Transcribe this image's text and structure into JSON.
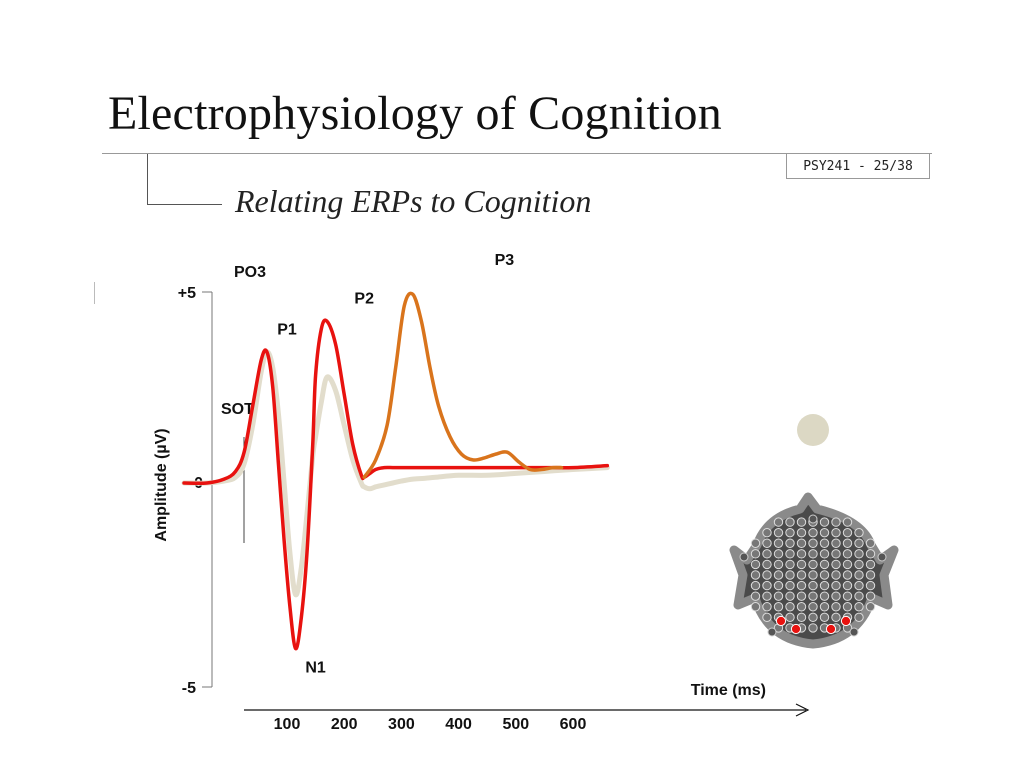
{
  "slide": {
    "title": "Electrophysiology of Cognition",
    "subtitle": "Relating ERPs to Cognition",
    "slide_number": "PSY241 - 25/38"
  },
  "colors": {
    "condition_red": "#e8120f",
    "condition_beige": "#e2ddcc",
    "condition_orange": "#d9741c",
    "head_fill": "#4a4a4a",
    "head_outline": "#8a8a8a",
    "electrode_highlight": "#e8120f",
    "marker_beige": "#dcd8c4"
  },
  "chart_data": {
    "type": "line",
    "ylabel": "Amplitude (µV)",
    "xlabel": "Time (ms)",
    "ylim": [
      -5,
      5
    ],
    "y_ticks": [
      {
        "value": 5,
        "label": "+5"
      },
      {
        "value": 0,
        "label": "0"
      },
      {
        "value": -5,
        "label": "-5"
      }
    ],
    "x_ticks": [
      100,
      200,
      300,
      400,
      500,
      600
    ],
    "electrode_label": "PO3",
    "onset_label": "SOT",
    "components": [
      {
        "label": "P1",
        "x": 100,
        "y": 3.5
      },
      {
        "label": "N1",
        "x": 150,
        "y": -4.3
      },
      {
        "label": "P2",
        "x": 235,
        "y": 4.3
      },
      {
        "label": "P3",
        "x": 480,
        "y": 5.3
      }
    ],
    "series": [
      {
        "color": "#e2ddcc",
        "x": [
          -80,
          -40,
          -10,
          10,
          25,
          40,
          55,
          65,
          75,
          85,
          95,
          105,
          115,
          125,
          135,
          145,
          150,
          160,
          170,
          185,
          200,
          215,
          230,
          235,
          245,
          255,
          270,
          285,
          300,
          320,
          340,
          360,
          400,
          450,
          500,
          550,
          600,
          660
        ],
        "y": [
          0.0,
          0.0,
          0.05,
          0.15,
          0.5,
          1.5,
          2.9,
          3.4,
          3.0,
          1.8,
          0.0,
          -1.8,
          -2.9,
          -2.2,
          -0.8,
          0.7,
          1.2,
          2.1,
          2.75,
          2.4,
          1.5,
          0.6,
          0.0,
          -0.1,
          -0.15,
          -0.1,
          -0.05,
          0.0,
          0.05,
          0.1,
          0.12,
          0.15,
          0.2,
          0.2,
          0.25,
          0.3,
          0.35,
          0.4
        ]
      },
      {
        "color": "#e8120f",
        "x": [
          -80,
          -40,
          -10,
          10,
          25,
          40,
          55,
          65,
          75,
          85,
          95,
          105,
          115,
          125,
          135,
          145,
          150,
          160,
          170,
          185,
          200,
          215,
          230,
          235,
          245,
          255,
          270,
          285,
          300,
          320,
          340,
          360,
          400,
          450,
          500,
          550,
          600,
          660
        ],
        "y": [
          0.0,
          0.0,
          0.1,
          0.3,
          0.8,
          2.0,
          3.2,
          3.4,
          2.5,
          0.5,
          -1.5,
          -3.2,
          -4.3,
          -3.5,
          -1.8,
          1.0,
          2.8,
          4.0,
          4.2,
          3.6,
          2.3,
          1.0,
          0.2,
          0.15,
          0.25,
          0.35,
          0.4,
          0.4,
          0.4,
          0.4,
          0.4,
          0.4,
          0.4,
          0.4,
          0.4,
          0.4,
          0.4,
          0.45
        ]
      },
      {
        "color": "#d9741c",
        "x": [
          235,
          255,
          275,
          290,
          305,
          320,
          335,
          350,
          365,
          385,
          405,
          425,
          445,
          465,
          485,
          505,
          525,
          545,
          565,
          580
        ],
        "y": [
          0.15,
          0.6,
          1.5,
          3.0,
          4.6,
          4.9,
          4.2,
          3.0,
          2.0,
          1.2,
          0.75,
          0.6,
          0.65,
          0.75,
          0.8,
          0.55,
          0.35,
          0.35,
          0.4,
          0.4
        ]
      }
    ]
  }
}
